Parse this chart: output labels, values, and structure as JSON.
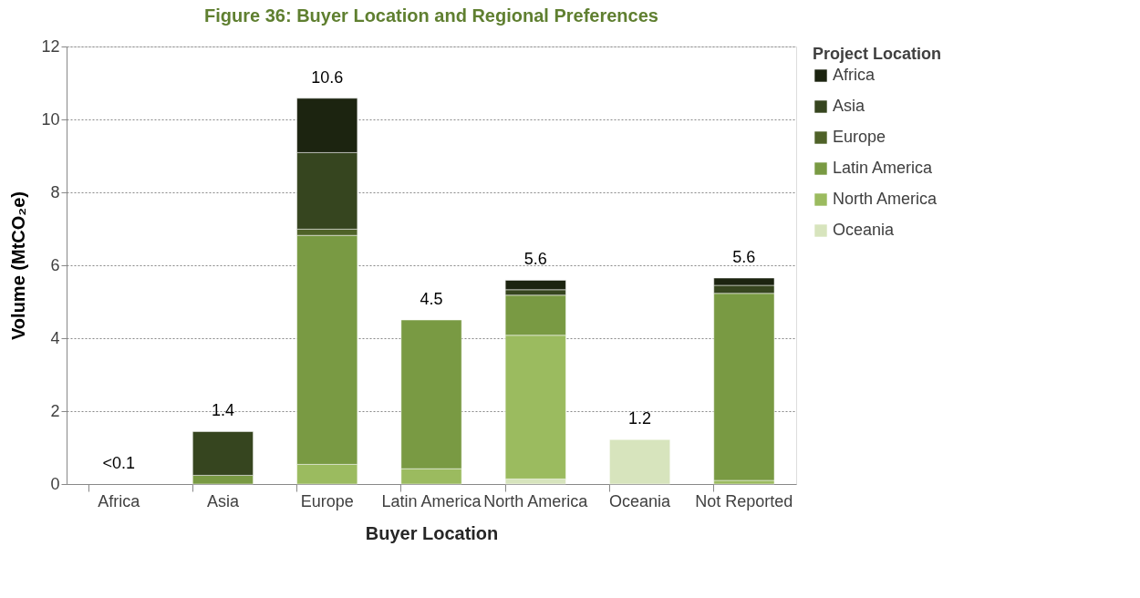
{
  "chart_data": {
    "type": "bar",
    "title": "Figure 36: Buyer Location and Regional Preferences",
    "xlabel": "Buyer Location",
    "ylabel": "Volume (MtCO₂e)",
    "legend_title": "Project Location",
    "categories": [
      "Africa",
      "Asia",
      "Europe",
      "Latin America",
      "North America",
      "Oceania",
      "Not Reported"
    ],
    "stacked": true,
    "series": [
      {
        "name": "Oceania",
        "color": "#d7e4bd",
        "values": [
          null,
          null,
          null,
          null,
          0.14,
          1.22,
          null
        ]
      },
      {
        "name": "North America",
        "color": "#9bbb5f",
        "values": [
          null,
          null,
          0.54,
          0.42,
          3.94,
          null,
          0.1
        ]
      },
      {
        "name": "Latin America",
        "color": "#799a43",
        "values": [
          null,
          0.24,
          6.28,
          4.08,
          1.1,
          null,
          5.13
        ]
      },
      {
        "name": "Europe",
        "color": "#4f6228",
        "values": [
          null,
          null,
          0.17,
          null,
          null,
          null,
          null
        ]
      },
      {
        "name": "Asia",
        "color": "#36451f",
        "values": [
          null,
          1.2,
          2.1,
          null,
          0.15,
          null,
          0.22
        ]
      },
      {
        "name": "Africa",
        "color": "#1c2410",
        "values": [
          null,
          null,
          1.49,
          null,
          0.26,
          null,
          0.2
        ]
      }
    ],
    "totals": [
      "<0.1",
      "1.4",
      "10.6",
      "4.5",
      "5.6",
      "1.2",
      "5.6"
    ],
    "ylim": [
      0,
      12
    ],
    "yticks": [
      0,
      2,
      4,
      6,
      8,
      10,
      12
    ],
    "grid": "y",
    "legend": "right"
  }
}
